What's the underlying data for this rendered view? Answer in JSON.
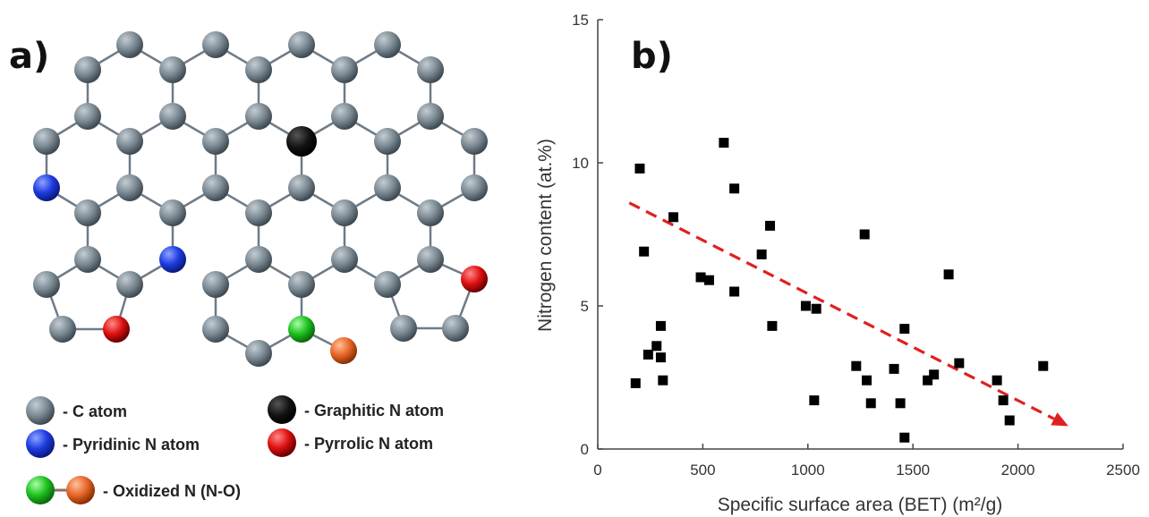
{
  "figure": {
    "panel_a_label": "a)",
    "panel_b_label": "b)"
  },
  "structure": {
    "legend": [
      {
        "label": "- C atom",
        "color": "#7d8b95"
      },
      {
        "label": "- Graphitic N atom",
        "color": "#050505"
      },
      {
        "label": "- Pyridinic N atom",
        "color": "#1f3de0"
      },
      {
        "label": "- Pyrrolic N atom",
        "color": "#e01010"
      },
      {
        "label": "- Oxidized N (N-O)",
        "color": "#1fc21f",
        "color2": "#e8662a"
      }
    ]
  },
  "chart_data": {
    "type": "scatter",
    "title": "",
    "xlabel": "Specific surface area (BET) (m²/g)",
    "ylabel": "Nitrogen content (at.%)",
    "xlim": [
      0,
      2500
    ],
    "ylim": [
      0,
      15
    ],
    "xticks": [
      "0",
      "500",
      "1000",
      "1500",
      "2000",
      "2500"
    ],
    "yticks": [
      "0",
      "5",
      "10",
      "15"
    ],
    "legend": "none",
    "grid": false,
    "marker": "square",
    "marker_color": "#000000",
    "points": [
      {
        "x": 200,
        "y": 9.8
      },
      {
        "x": 220,
        "y": 6.9
      },
      {
        "x": 180,
        "y": 2.3
      },
      {
        "x": 240,
        "y": 3.3
      },
      {
        "x": 280,
        "y": 3.6
      },
      {
        "x": 300,
        "y": 4.3
      },
      {
        "x": 300,
        "y": 3.2
      },
      {
        "x": 310,
        "y": 2.4
      },
      {
        "x": 360,
        "y": 8.1
      },
      {
        "x": 490,
        "y": 6.0
      },
      {
        "x": 530,
        "y": 5.9
      },
      {
        "x": 600,
        "y": 10.7
      },
      {
        "x": 650,
        "y": 9.1
      },
      {
        "x": 650,
        "y": 5.5
      },
      {
        "x": 780,
        "y": 6.8
      },
      {
        "x": 820,
        "y": 7.8
      },
      {
        "x": 830,
        "y": 4.3
      },
      {
        "x": 990,
        "y": 5.0
      },
      {
        "x": 1040,
        "y": 4.9
      },
      {
        "x": 1030,
        "y": 1.7
      },
      {
        "x": 1230,
        "y": 2.9
      },
      {
        "x": 1270,
        "y": 7.5
      },
      {
        "x": 1280,
        "y": 2.4
      },
      {
        "x": 1300,
        "y": 1.6
      },
      {
        "x": 1410,
        "y": 2.8
      },
      {
        "x": 1440,
        "y": 1.6
      },
      {
        "x": 1460,
        "y": 4.2
      },
      {
        "x": 1460,
        "y": 0.4
      },
      {
        "x": 1570,
        "y": 2.4
      },
      {
        "x": 1600,
        "y": 2.6
      },
      {
        "x": 1670,
        "y": 6.1
      },
      {
        "x": 1720,
        "y": 3.0
      },
      {
        "x": 1900,
        "y": 2.4
      },
      {
        "x": 1930,
        "y": 1.7
      },
      {
        "x": 1960,
        "y": 1.0
      },
      {
        "x": 2120,
        "y": 2.9
      }
    ],
    "trend_arrow": {
      "x": [
        150,
        2240
      ],
      "y": [
        8.6,
        0.8
      ],
      "color": "#e02020",
      "style": "dashed"
    }
  }
}
